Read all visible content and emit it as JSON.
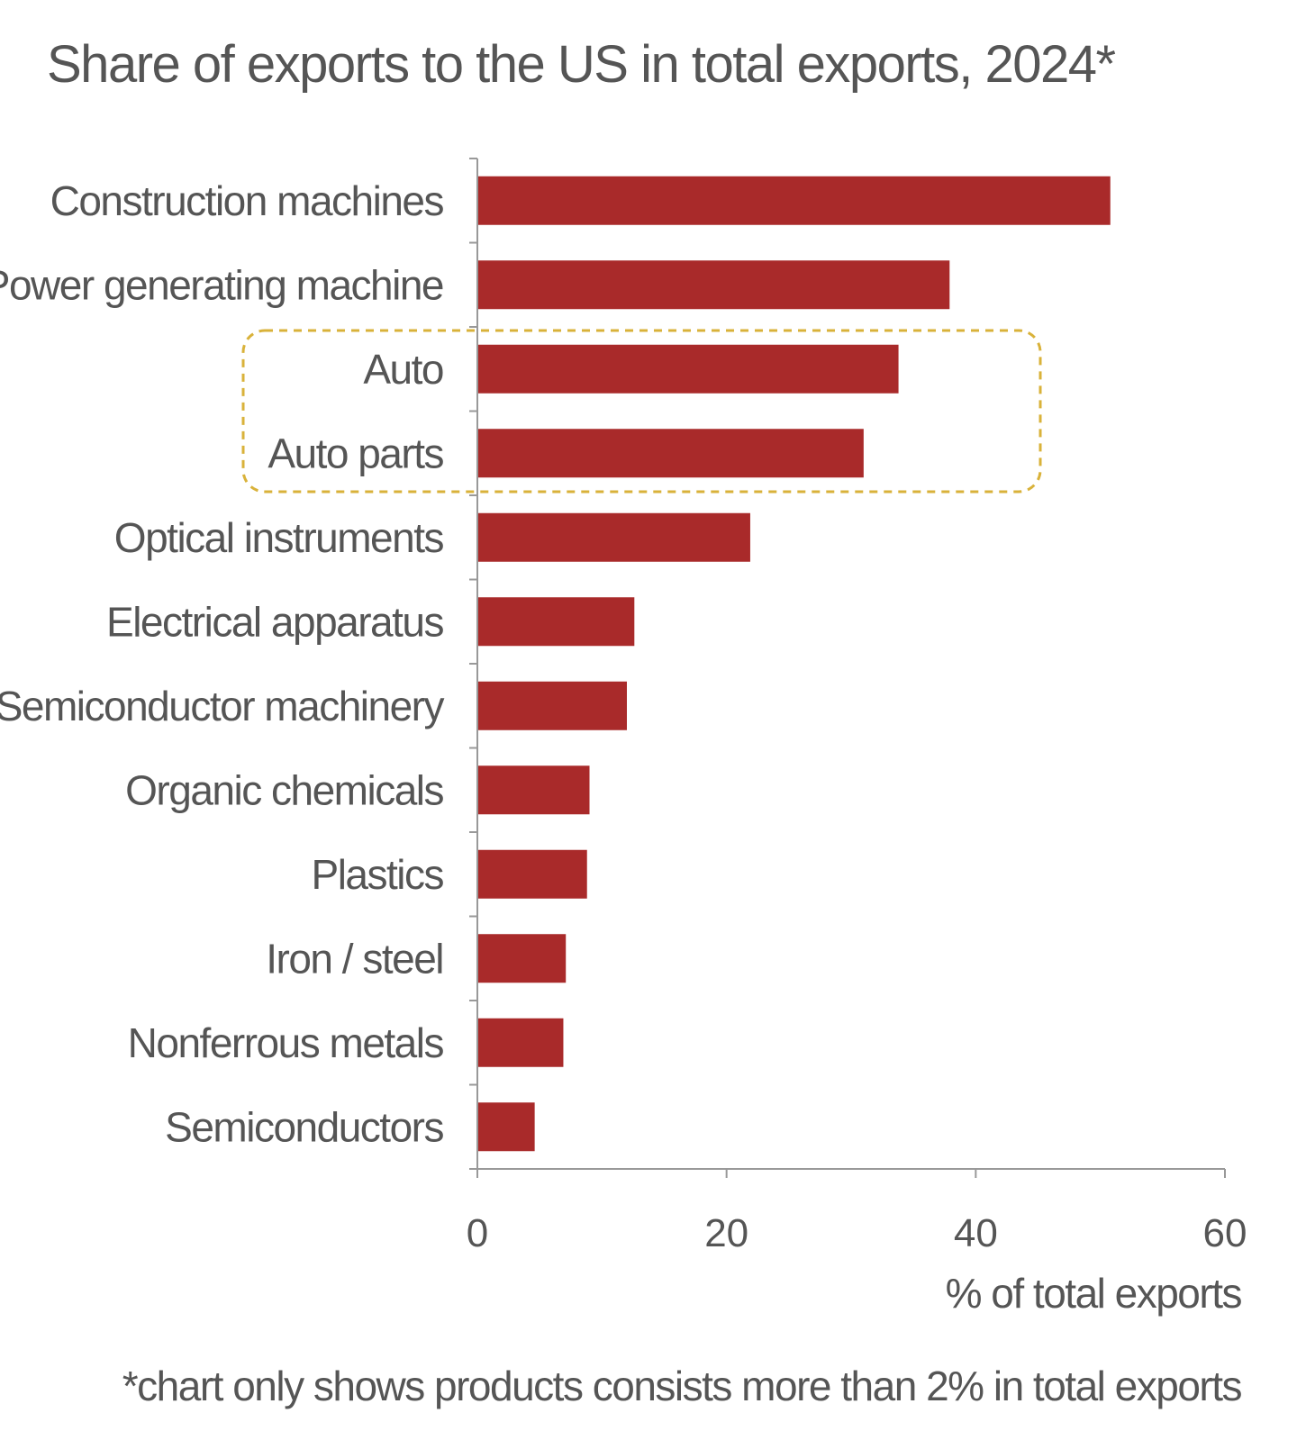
{
  "chart_data": {
    "type": "bar",
    "orientation": "horizontal",
    "title": "Share of exports to the US in total exports, 2024*",
    "categories": [
      "Construction machines",
      "Power generating machine",
      "Auto",
      "Auto parts",
      "Optical instruments",
      "Electrical apparatus",
      "Semiconductor machinery",
      "Organic chemicals",
      "Plastics",
      "Iron / steel",
      "Nonferrous metals",
      "Semiconductors"
    ],
    "values": [
      50.8,
      37.9,
      33.8,
      31.0,
      21.9,
      12.6,
      12.0,
      9.0,
      8.8,
      7.1,
      6.9,
      4.6
    ],
    "xlabel": "% of total exports",
    "ylabel": "",
    "xlim": [
      0,
      60
    ],
    "xticks": [
      0,
      20,
      40,
      60
    ],
    "grid": false,
    "legend": "none",
    "highlight": {
      "categories": [
        "Auto",
        "Auto parts"
      ],
      "style": "dashed-box",
      "color": "#d9b23a"
    },
    "bar_color": "#a92a2a",
    "footnote": "*chart only shows products consists more than 2% in total exports"
  }
}
